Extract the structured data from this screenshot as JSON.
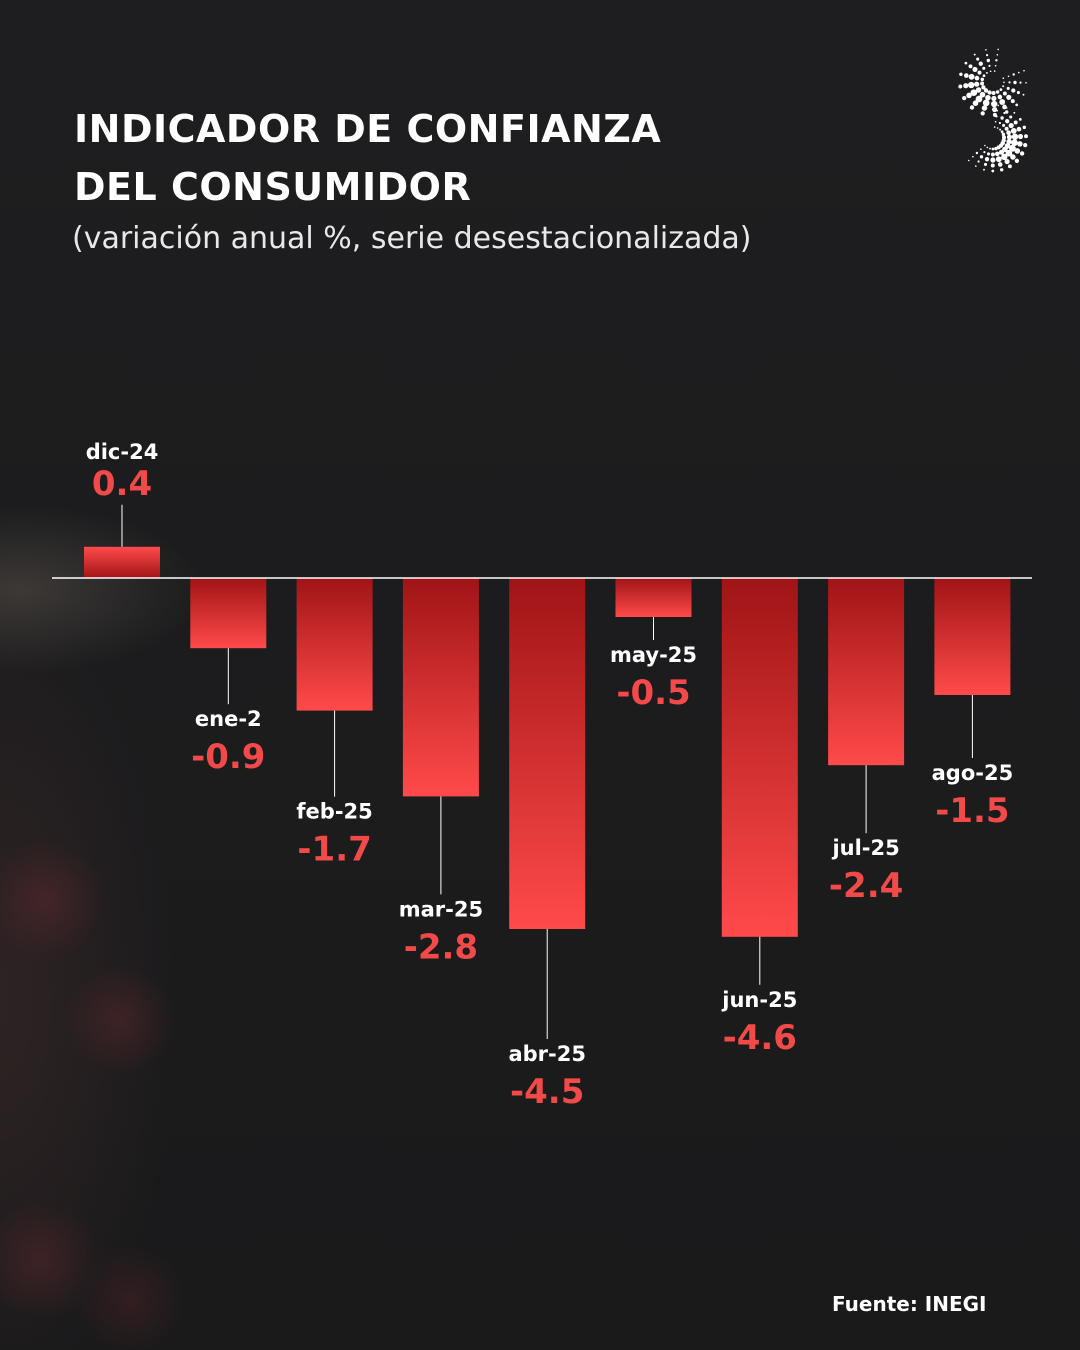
{
  "header": {
    "title_line1": "INDICADOR DE CONFIANZA",
    "title_line2": "DEL CONSUMIDOR",
    "subtitle": "(variación anual %, serie desestacionalizada)"
  },
  "logo": {
    "icon": "dotted-s-logo"
  },
  "colors": {
    "bar_top_negative": "#a01416",
    "bar_bottom_negative": "#ff4a4a",
    "value_label": "#f24a48",
    "category_label": "#ffffff",
    "baseline": "#ffffff",
    "background": "#1d1d1e"
  },
  "chart_data": {
    "type": "bar",
    "title": "INDICADOR DE CONFIANZA DEL CONSUMIDOR",
    "subtitle": "(variación anual %, serie desestacionalizada)",
    "categories": [
      "dic-24",
      "ene-2",
      "feb-25",
      "mar-25",
      "abr-25",
      "may-25",
      "jun-25",
      "jul-25",
      "ago-25"
    ],
    "values": [
      0.4,
      -0.9,
      -1.7,
      -2.8,
      -4.5,
      -0.5,
      -4.6,
      -2.4,
      -1.5
    ],
    "value_labels": [
      "0.4",
      "-0.9",
      "-1.7",
      "-2.8",
      "-4.5",
      "-0.5",
      "-4.6",
      "-2.4",
      "-1.5"
    ],
    "xlabel": "",
    "ylabel": "",
    "ylim": [
      -4.6,
      0.4
    ],
    "grid": false,
    "legend": "none"
  },
  "footer": {
    "source": "Fuente: INEGI"
  }
}
